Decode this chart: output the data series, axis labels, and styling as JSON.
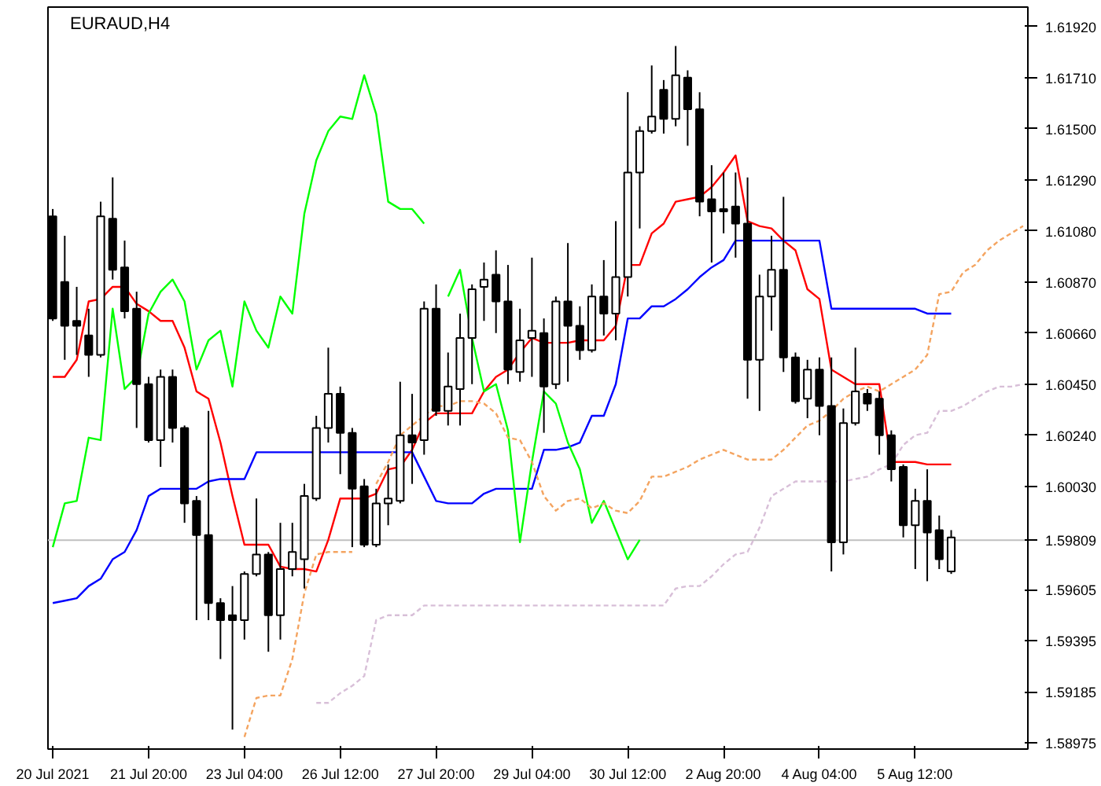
{
  "chart_data": {
    "type": "candlestick",
    "title": "EURAUD,H4",
    "categories": [
      "20 Jul 2021",
      null,
      null,
      null,
      null,
      null,
      null,
      null,
      "21 Jul 20:00",
      null,
      null,
      null,
      null,
      null,
      null,
      null,
      "23 Jul 04:00",
      null,
      null,
      null,
      null,
      null,
      null,
      null,
      "26 Jul 12:00",
      null,
      null,
      null,
      null,
      null,
      null,
      null,
      "27 Jul 20:00",
      null,
      null,
      null,
      null,
      null,
      null,
      null,
      "29 Jul 04:00",
      null,
      null,
      null,
      null,
      null,
      null,
      null,
      "30 Jul 12:00",
      null,
      null,
      null,
      null,
      null,
      null,
      null,
      "2 Aug 20:00",
      null,
      null,
      null,
      null,
      null,
      null,
      null,
      "4 Aug 04:00",
      null,
      null,
      null,
      null,
      null,
      null,
      null,
      "5 Aug 12:00",
      null,
      null,
      null,
      null,
      null,
      null,
      null,
      null,
      null
    ],
    "ohlc": [
      [
        1.6114,
        1.6117,
        1.6071,
        1.6072
      ],
      [
        1.6087,
        1.6106,
        1.6055,
        1.6069
      ],
      [
        1.6071,
        1.6085,
        1.6057,
        1.6069
      ],
      [
        1.6065,
        1.6076,
        1.6048,
        1.6057
      ],
      [
        1.6057,
        1.612,
        1.6056,
        1.6114
      ],
      [
        1.6113,
        1.613,
        1.6088,
        1.6092
      ],
      [
        1.6093,
        1.6104,
        1.6072,
        1.6075
      ],
      [
        1.6076,
        1.6083,
        1.6027,
        1.6045
      ],
      [
        1.6045,
        1.6048,
        1.6021,
        1.6022
      ],
      [
        1.6022,
        1.6051,
        1.6011,
        1.6048
      ],
      [
        1.6048,
        1.6051,
        1.6021,
        1.6027
      ],
      [
        1.6027,
        1.6028,
        1.5988,
        1.5996
      ],
      [
        1.5997,
        1.5999,
        1.5948,
        1.5983
      ],
      [
        1.5983,
        1.6034,
        1.5948,
        1.5955
      ],
      [
        1.5955,
        1.5957,
        1.5932,
        1.5948
      ],
      [
        1.595,
        1.5962,
        1.5903,
        1.5948
      ],
      [
        1.5948,
        1.5968,
        1.594,
        1.5967
      ],
      [
        1.5967,
        1.5998,
        1.5966,
        1.5975
      ],
      [
        1.5975,
        1.5976,
        1.5935,
        1.595
      ],
      [
        1.595,
        1.5988,
        1.594,
        1.5969
      ],
      [
        1.5969,
        1.5988,
        1.5966,
        1.5976
      ],
      [
        1.5973,
        1.6004,
        1.5961,
        1.5999
      ],
      [
        1.5998,
        1.6032,
        1.5997,
        1.6027
      ],
      [
        1.6027,
        1.606,
        1.6021,
        1.6041
      ],
      [
        1.6041,
        1.6044,
        1.6008,
        1.6025
      ],
      [
        1.6025,
        1.6027,
        1.5978,
        1.6002
      ],
      [
        1.6003,
        1.6006,
        1.5978,
        1.5979
      ],
      [
        1.5979,
        1.6002,
        1.5978,
        1.5996
      ],
      [
        1.5996,
        1.6012,
        1.5987,
        1.5998
      ],
      [
        1.5997,
        1.6046,
        1.5996,
        1.6024
      ],
      [
        1.6024,
        1.6041,
        1.6004,
        1.6021
      ],
      [
        1.6022,
        1.6079,
        1.6016,
        1.6076
      ],
      [
        1.6076,
        1.6086,
        1.6032,
        1.6034
      ],
      [
        1.6034,
        1.6058,
        1.6028,
        1.6044
      ],
      [
        1.6043,
        1.6074,
        1.6028,
        1.6064
      ],
      [
        1.6064,
        1.6086,
        1.6045,
        1.6084
      ],
      [
        1.6085,
        1.6095,
        1.6071,
        1.6088
      ],
      [
        1.609,
        1.61,
        1.6066,
        1.6079
      ],
      [
        1.6079,
        1.6094,
        1.6045,
        1.6051
      ],
      [
        1.605,
        1.6076,
        1.6046,
        1.6063
      ],
      [
        1.6064,
        1.6097,
        1.6048,
        1.6067
      ],
      [
        1.6066,
        1.6072,
        1.6025,
        1.6044
      ],
      [
        1.6045,
        1.6081,
        1.6043,
        1.6079
      ],
      [
        1.6079,
        1.6103,
        1.6046,
        1.6069
      ],
      [
        1.6069,
        1.6077,
        1.6055,
        1.6059
      ],
      [
        1.6059,
        1.6086,
        1.6058,
        1.6081
      ],
      [
        1.6081,
        1.6096,
        1.6065,
        1.6074
      ],
      [
        1.6074,
        1.6112,
        1.6063,
        1.6089
      ],
      [
        1.6089,
        1.6165,
        1.6081,
        1.6132
      ],
      [
        1.6132,
        1.6151,
        1.6109,
        1.6149
      ],
      [
        1.6149,
        1.6176,
        1.6148,
        1.6155
      ],
      [
        1.6166,
        1.617,
        1.6148,
        1.6154
      ],
      [
        1.6154,
        1.6184,
        1.6151,
        1.6172
      ],
      [
        1.6171,
        1.6174,
        1.6143,
        1.6158
      ],
      [
        1.6158,
        1.6165,
        1.6114,
        1.612
      ],
      [
        1.6121,
        1.6135,
        1.6095,
        1.6116
      ],
      [
        1.6117,
        1.6132,
        1.6107,
        1.6116
      ],
      [
        1.6118,
        1.6132,
        1.6097,
        1.6111
      ],
      [
        1.6111,
        1.613,
        1.6039,
        1.6055
      ],
      [
        1.6055,
        1.609,
        1.6034,
        1.6081
      ],
      [
        1.6081,
        1.6106,
        1.6067,
        1.6092
      ],
      [
        1.6092,
        1.6122,
        1.605,
        1.6056
      ],
      [
        1.6056,
        1.6058,
        1.6037,
        1.6038
      ],
      [
        1.6039,
        1.6055,
        1.6031,
        1.6051
      ],
      [
        1.6051,
        1.6056,
        1.6024,
        1.6036
      ],
      [
        1.6036,
        1.6056,
        1.5968,
        1.598
      ],
      [
        1.598,
        1.6035,
        1.5975,
        1.6029
      ],
      [
        1.6029,
        1.606,
        1.6028,
        1.6042
      ],
      [
        1.6041,
        1.6043,
        1.6034,
        1.6037
      ],
      [
        1.6039,
        1.6042,
        1.6016,
        1.6024
      ],
      [
        1.6024,
        1.6026,
        1.6005,
        1.601
      ],
      [
        1.6011,
        1.6012,
        1.5982,
        1.5987
      ],
      [
        1.5987,
        1.6002,
        1.5969,
        1.5997
      ],
      [
        1.5997,
        1.601,
        1.5964,
        1.5984
      ],
      [
        1.5985,
        1.5991,
        1.5969,
        1.5973
      ],
      [
        1.5968,
        1.5985,
        1.5967,
        1.5982
      ],
      null,
      null,
      null,
      null,
      null,
      null
    ],
    "series": [
      {
        "type": "line",
        "color": "#ff0000",
        "line_style": "solid",
        "values": [
          1.6048,
          1.6048,
          1.6055,
          1.6079,
          1.608,
          1.6085,
          1.6085,
          1.6078,
          1.6075,
          1.6071,
          1.6071,
          1.606,
          1.6042,
          1.6039,
          1.6021,
          1.5999,
          1.5979,
          1.5979,
          1.5979,
          1.597,
          1.5969,
          1.5969,
          1.5968,
          1.5981,
          1.5998,
          1.5998,
          1.5998,
          1.6,
          1.601,
          1.6011,
          1.6018,
          1.6029,
          1.6033,
          1.6033,
          1.6033,
          1.6033,
          1.6042,
          1.6048,
          1.6051,
          1.6058,
          1.6064,
          1.6062,
          1.6062,
          1.6062,
          1.6063,
          1.6063,
          1.6063,
          1.6069,
          1.6094,
          1.6094,
          1.6107,
          1.6111,
          1.612,
          1.6121,
          1.6122,
          1.6126,
          1.6132,
          1.6139,
          1.6112,
          1.611,
          1.6109,
          1.6104,
          1.61,
          1.6084,
          1.608,
          1.6051,
          1.6048,
          1.6045,
          1.6045,
          1.6045,
          1.6013,
          1.6013,
          1.6013,
          1.6012,
          1.6012,
          1.6012,
          null,
          null,
          null,
          null,
          null,
          null
        ]
      },
      {
        "type": "line",
        "color": "#0000ff",
        "line_style": "solid",
        "values": [
          1.5955,
          1.5956,
          1.5957,
          1.5962,
          1.5965,
          1.5973,
          1.5976,
          1.5985,
          1.5999,
          1.6002,
          1.6002,
          1.6002,
          1.6002,
          1.6005,
          1.6006,
          1.6006,
          1.6006,
          1.6017,
          1.6017,
          1.6017,
          1.6017,
          1.6017,
          1.6017,
          1.6017,
          1.6017,
          1.6017,
          1.6017,
          1.6017,
          1.6017,
          1.6017,
          1.6017,
          1.6007,
          1.5997,
          1.5996,
          1.5996,
          1.5996,
          1.6,
          1.6002,
          1.6002,
          1.6002,
          1.6002,
          1.6018,
          1.6018,
          1.6019,
          1.6021,
          1.6032,
          1.6032,
          1.6045,
          1.6072,
          1.6072,
          1.6077,
          1.6077,
          1.608,
          1.6084,
          1.6089,
          1.6093,
          1.6096,
          1.6104,
          1.6104,
          1.6104,
          1.6104,
          1.6104,
          1.6104,
          1.6104,
          1.6104,
          1.6076,
          1.6076,
          1.6076,
          1.6076,
          1.6076,
          1.6076,
          1.6076,
          1.6076,
          1.6074,
          1.6074,
          1.6074,
          null,
          null,
          null,
          null,
          null,
          null
        ]
      },
      {
        "type": "line",
        "color": "#00ff00",
        "line_style": "solid",
        "values": [
          1.5978,
          1.5996,
          1.5997,
          1.6023,
          1.6022,
          1.6076,
          1.6043,
          1.6048,
          1.6074,
          1.6083,
          1.6088,
          1.6079,
          1.6051,
          1.6063,
          1.6067,
          1.6044,
          1.6079,
          1.6067,
          1.606,
          1.6081,
          1.6074,
          1.6115,
          1.6137,
          1.6149,
          1.6155,
          1.6154,
          1.6172,
          1.6156,
          1.612,
          1.6117,
          1.6117,
          1.6111,
          null,
          1.6081,
          1.6092,
          1.6064,
          1.6042,
          1.6045,
          1.6026,
          1.598,
          1.6013,
          1.6042,
          1.6037,
          1.6021,
          1.601,
          1.5988,
          1.5997,
          1.5985,
          1.5973,
          1.5981,
          null,
          null,
          null,
          null,
          null,
          null,
          null,
          null,
          null,
          null,
          null,
          null,
          null,
          null,
          null,
          null,
          null,
          null,
          null,
          null,
          null,
          null,
          null,
          null,
          null,
          null,
          null,
          null,
          null,
          null,
          null,
          null
        ]
      },
      {
        "type": "line",
        "color": "#f4a460",
        "line_style": "dashed",
        "values": [
          null,
          null,
          null,
          null,
          null,
          null,
          null,
          null,
          null,
          null,
          null,
          null,
          null,
          null,
          null,
          null,
          1.59,
          1.5916,
          1.5917,
          1.5917,
          1.5932,
          1.5959,
          1.5975,
          1.5976,
          1.5976,
          1.5976,
          null,
          1.6004,
          1.6013,
          1.6024,
          1.6028,
          1.6032,
          1.6036,
          1.6036,
          1.6038,
          1.6038,
          1.6037,
          1.6033,
          1.6023,
          1.6022,
          1.6013,
          1.5999,
          1.5993,
          1.5997,
          1.5998,
          1.5994,
          1.5996,
          1.5993,
          1.5992,
          1.5997,
          1.6007,
          1.6007,
          1.6009,
          1.6011,
          1.6014,
          1.6016,
          1.6018,
          1.6016,
          1.6014,
          1.6014,
          1.6014,
          1.6018,
          1.6023,
          1.6028,
          1.603,
          1.6034,
          1.6039,
          1.6042,
          1.6044,
          1.6042,
          1.6045,
          1.6048,
          1.6051,
          1.6057,
          1.6082,
          1.6083,
          1.6091,
          1.6094,
          1.61,
          1.6104,
          1.6107,
          1.611
        ]
      },
      {
        "type": "line",
        "color": "#d8bfd8",
        "line_style": "dashed",
        "values": [
          null,
          null,
          null,
          null,
          null,
          null,
          null,
          null,
          null,
          null,
          null,
          null,
          null,
          null,
          null,
          null,
          null,
          null,
          null,
          null,
          null,
          null,
          1.5914,
          1.5914,
          1.5918,
          1.5921,
          1.5925,
          1.5948,
          1.595,
          1.595,
          1.595,
          1.5954,
          1.5954,
          1.5954,
          1.5954,
          1.5954,
          1.5954,
          1.5954,
          1.5954,
          1.5954,
          1.5954,
          1.5954,
          1.5954,
          1.5954,
          1.5954,
          1.5954,
          1.5954,
          1.5954,
          1.5954,
          1.5954,
          1.5954,
          1.5954,
          1.5961,
          1.5962,
          1.5962,
          1.5966,
          1.5971,
          1.5975,
          1.5976,
          1.5986,
          1.5999,
          1.6002,
          1.6005,
          1.6005,
          1.6005,
          1.6005,
          1.6005,
          1.6006,
          1.6007,
          1.601,
          1.6012,
          1.602,
          1.6024,
          1.6025,
          1.6034,
          1.6034,
          1.6036,
          1.6039,
          1.6042,
          1.6044,
          1.6044,
          1.6045
        ]
      }
    ],
    "ref_lines": [
      {
        "axis": "y",
        "value": 1.59809,
        "color": "#c0c0c0"
      }
    ],
    "ylim": [
      1.5895,
      1.62
    ],
    "yticks": [
      {
        "value": 1.6192,
        "label": "1.61920"
      },
      {
        "value": 1.6171,
        "label": "1.61710"
      },
      {
        "value": 1.615,
        "label": "1.61500"
      },
      {
        "value": 1.6129,
        "label": "1.61290"
      },
      {
        "value": 1.6108,
        "label": "1.61080"
      },
      {
        "value": 1.6087,
        "label": "1.60870"
      },
      {
        "value": 1.6066,
        "label": "1.60660"
      },
      {
        "value": 1.6045,
        "label": "1.60450"
      },
      {
        "value": 1.6024,
        "label": "1.60240"
      },
      {
        "value": 1.6003,
        "label": "1.60030"
      },
      1.59809,
      1.59605,
      1.59395,
      1.59185,
      1.58975
    ],
    "grid": false
  }
}
